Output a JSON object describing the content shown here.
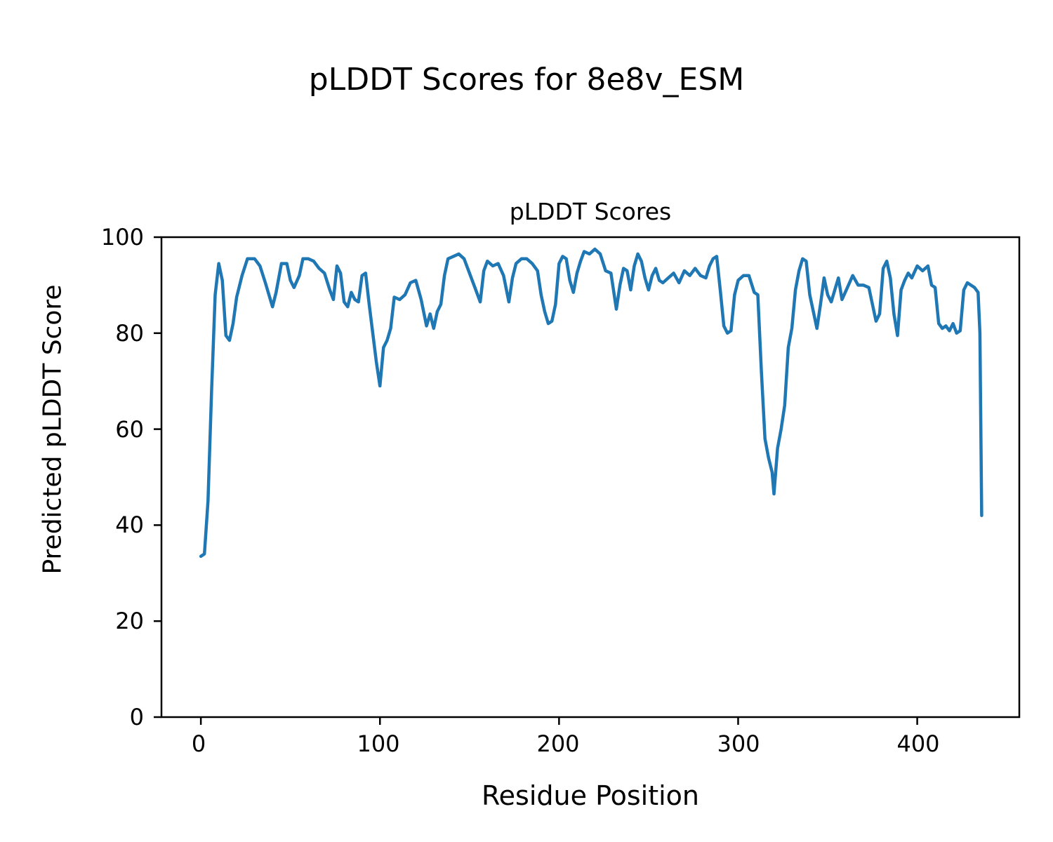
{
  "chart_data": {
    "type": "line",
    "suptitle": "pLDDT Scores for 8e8v_ESM",
    "title": "pLDDT Scores",
    "xlabel": "Residue Position",
    "ylabel": "Predicted pLDDT Score",
    "xlim": [
      -22,
      457
    ],
    "ylim": [
      0,
      100
    ],
    "xticks": [
      0,
      100,
      200,
      300,
      400
    ],
    "yticks": [
      0,
      20,
      40,
      60,
      80,
      100
    ],
    "grid": false,
    "legend": "none",
    "line_color": "#1f77b4",
    "line_width": 4.5,
    "axis_color": "#000000",
    "series": [
      {
        "name": "pLDDT",
        "points": [
          [
            0,
            33.5
          ],
          [
            2,
            34
          ],
          [
            4,
            45
          ],
          [
            6,
            68
          ],
          [
            8,
            88
          ],
          [
            10,
            94.5
          ],
          [
            12,
            91
          ],
          [
            14,
            79.5
          ],
          [
            16,
            78.5
          ],
          [
            18,
            82
          ],
          [
            20,
            87.5
          ],
          [
            23,
            92
          ],
          [
            26,
            95.5
          ],
          [
            30,
            95.5
          ],
          [
            33,
            94
          ],
          [
            36,
            90.5
          ],
          [
            38,
            88
          ],
          [
            40,
            85.5
          ],
          [
            42,
            88.5
          ],
          [
            45,
            94.5
          ],
          [
            48,
            94.5
          ],
          [
            50,
            91
          ],
          [
            52,
            89.5
          ],
          [
            55,
            92
          ],
          [
            57,
            95.5
          ],
          [
            60,
            95.5
          ],
          [
            63,
            95
          ],
          [
            66,
            93.5
          ],
          [
            69,
            92.5
          ],
          [
            72,
            89
          ],
          [
            74,
            87
          ],
          [
            76,
            94
          ],
          [
            78,
            92.5
          ],
          [
            80,
            86.5
          ],
          [
            82,
            85.5
          ],
          [
            84,
            88.5
          ],
          [
            86,
            87
          ],
          [
            88,
            86.5
          ],
          [
            90,
            92
          ],
          [
            92,
            92.5
          ],
          [
            94,
            86
          ],
          [
            96,
            80
          ],
          [
            98,
            74
          ],
          [
            100,
            69
          ],
          [
            102,
            77
          ],
          [
            104,
            78.5
          ],
          [
            106,
            81
          ],
          [
            108,
            87.5
          ],
          [
            111,
            87
          ],
          [
            114,
            88
          ],
          [
            117,
            90.5
          ],
          [
            120,
            91
          ],
          [
            123,
            87
          ],
          [
            126,
            81.5
          ],
          [
            128,
            84
          ],
          [
            130,
            81
          ],
          [
            132,
            84.5
          ],
          [
            134,
            86
          ],
          [
            136,
            92
          ],
          [
            138,
            95.5
          ],
          [
            141,
            96
          ],
          [
            144,
            96.5
          ],
          [
            147,
            95.5
          ],
          [
            150,
            92.5
          ],
          [
            153,
            89.5
          ],
          [
            156,
            86.5
          ],
          [
            158,
            93
          ],
          [
            160,
            95
          ],
          [
            163,
            94
          ],
          [
            166,
            94.5
          ],
          [
            169,
            92
          ],
          [
            172,
            86.5
          ],
          [
            174,
            91.5
          ],
          [
            176,
            94.5
          ],
          [
            179,
            95.5
          ],
          [
            182,
            95.5
          ],
          [
            185,
            94.5
          ],
          [
            188,
            93
          ],
          [
            190,
            88
          ],
          [
            192,
            84.5
          ],
          [
            194,
            82
          ],
          [
            196,
            82.5
          ],
          [
            198,
            86
          ],
          [
            200,
            94.5
          ],
          [
            202,
            96
          ],
          [
            204,
            95.5
          ],
          [
            206,
            91
          ],
          [
            208,
            88.5
          ],
          [
            210,
            92.5
          ],
          [
            212,
            95
          ],
          [
            214,
            97
          ],
          [
            217,
            96.5
          ],
          [
            220,
            97.5
          ],
          [
            223,
            96.5
          ],
          [
            226,
            93
          ],
          [
            229,
            92.5
          ],
          [
            232,
            85
          ],
          [
            234,
            90
          ],
          [
            236,
            93.5
          ],
          [
            238,
            93
          ],
          [
            240,
            89
          ],
          [
            242,
            94
          ],
          [
            244,
            96.5
          ],
          [
            246,
            95
          ],
          [
            248,
            91.5
          ],
          [
            250,
            89
          ],
          [
            252,
            92
          ],
          [
            254,
            93.5
          ],
          [
            256,
            91
          ],
          [
            258,
            90.5
          ],
          [
            261,
            91.5
          ],
          [
            264,
            92.5
          ],
          [
            267,
            90.5
          ],
          [
            270,
            93
          ],
          [
            273,
            92
          ],
          [
            276,
            93.5
          ],
          [
            279,
            92
          ],
          [
            282,
            91.5
          ],
          [
            284,
            94
          ],
          [
            286,
            95.5
          ],
          [
            288,
            96
          ],
          [
            290,
            89
          ],
          [
            292,
            81.5
          ],
          [
            294,
            80
          ],
          [
            296,
            80.5
          ],
          [
            298,
            88
          ],
          [
            300,
            91
          ],
          [
            303,
            92
          ],
          [
            306,
            92
          ],
          [
            309,
            88.5
          ],
          [
            311,
            88
          ],
          [
            313,
            72
          ],
          [
            315,
            58
          ],
          [
            317,
            54
          ],
          [
            319,
            51
          ],
          [
            320,
            46.5
          ],
          [
            322,
            56
          ],
          [
            324,
            60
          ],
          [
            326,
            65
          ],
          [
            328,
            77
          ],
          [
            330,
            81
          ],
          [
            332,
            89
          ],
          [
            334,
            93
          ],
          [
            336,
            95.5
          ],
          [
            338,
            95
          ],
          [
            340,
            88
          ],
          [
            342,
            84.5
          ],
          [
            344,
            81
          ],
          [
            346,
            86
          ],
          [
            348,
            91.5
          ],
          [
            350,
            88
          ],
          [
            352,
            86.5
          ],
          [
            354,
            89
          ],
          [
            356,
            91.5
          ],
          [
            358,
            87
          ],
          [
            361,
            89.5
          ],
          [
            364,
            92
          ],
          [
            367,
            90
          ],
          [
            370,
            90
          ],
          [
            373,
            89.5
          ],
          [
            375,
            86
          ],
          [
            377,
            82.5
          ],
          [
            379,
            84
          ],
          [
            381,
            93.5
          ],
          [
            383,
            95
          ],
          [
            385,
            91.5
          ],
          [
            387,
            84
          ],
          [
            389,
            79.5
          ],
          [
            391,
            89
          ],
          [
            393,
            91
          ],
          [
            395,
            92.5
          ],
          [
            397,
            91.5
          ],
          [
            400,
            94
          ],
          [
            403,
            93
          ],
          [
            406,
            94
          ],
          [
            408,
            90
          ],
          [
            410,
            89.5
          ],
          [
            412,
            82
          ],
          [
            414,
            81
          ],
          [
            416,
            81.5
          ],
          [
            418,
            80.5
          ],
          [
            420,
            82
          ],
          [
            422,
            80
          ],
          [
            424,
            80.5
          ],
          [
            426,
            89
          ],
          [
            428,
            90.5
          ],
          [
            430,
            90
          ],
          [
            432,
            89.5
          ],
          [
            434,
            88.5
          ],
          [
            435,
            80
          ],
          [
            436,
            42
          ]
        ]
      }
    ]
  }
}
